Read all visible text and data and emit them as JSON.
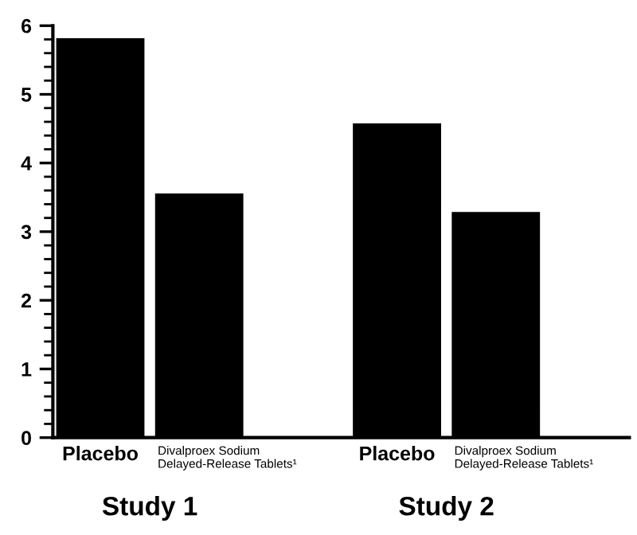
{
  "chart_data": {
    "type": "bar",
    "categories": [
      "Placebo",
      "Divalproex Sodium\nDelayed-Release Tablets¹",
      null,
      "Placebo",
      "Divalproex Sodium\nDelayed-Release Tablets¹"
    ],
    "values": [
      5.8,
      3.54,
      null,
      4.56,
      3.27
    ],
    "color": "#000000",
    "ylim": [
      0,
      6
    ],
    "yticks": [
      0,
      1,
      2,
      3,
      4,
      5,
      6
    ],
    "grid": false,
    "annotations": [
      "Study 1",
      "Study 2"
    ]
  }
}
